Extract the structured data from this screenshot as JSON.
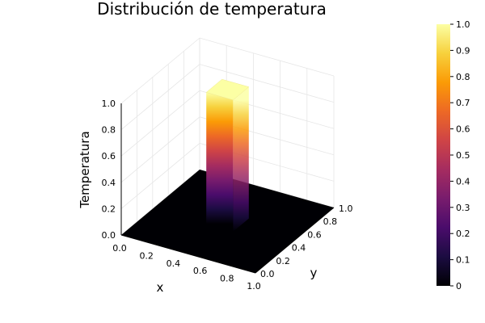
{
  "chart_data": {
    "type": "surface3d",
    "title": "Distribución de temperatura",
    "xlabel": "x",
    "ylabel": "y",
    "zlabel": "Temperatura",
    "xlim": [
      0,
      1
    ],
    "ylim": [
      0,
      1
    ],
    "zlim": [
      0,
      1
    ],
    "x_ticks": [
      "0.0",
      "0.2",
      "0.4",
      "0.6",
      "0.8",
      "1.0"
    ],
    "y_ticks": [
      "0.0",
      "0.2",
      "0.4",
      "0.6",
      "0.8",
      "1.0"
    ],
    "z_ticks": [
      "0.0",
      "0.2",
      "0.4",
      "0.6",
      "0.8",
      "1.0"
    ],
    "colorbar_ticks": [
      "0",
      "0.1",
      "0.2",
      "0.3",
      "0.4",
      "0.5",
      "0.6",
      "0.7",
      "0.8",
      "0.9",
      "1.0"
    ],
    "colormap": "inferno",
    "colormap_stops": [
      "#000004",
      "#1b0c41",
      "#4a0c6b",
      "#781c6d",
      "#a52c60",
      "#cf4446",
      "#ed6925",
      "#fb9b06",
      "#f7d13d",
      "#fcffa4"
    ],
    "grid": true,
    "surface": {
      "baseline": 0.0,
      "peak": 1.0,
      "peak_region_x": [
        0.4,
        0.6
      ],
      "peak_region_y": [
        0.4,
        0.6
      ]
    }
  }
}
